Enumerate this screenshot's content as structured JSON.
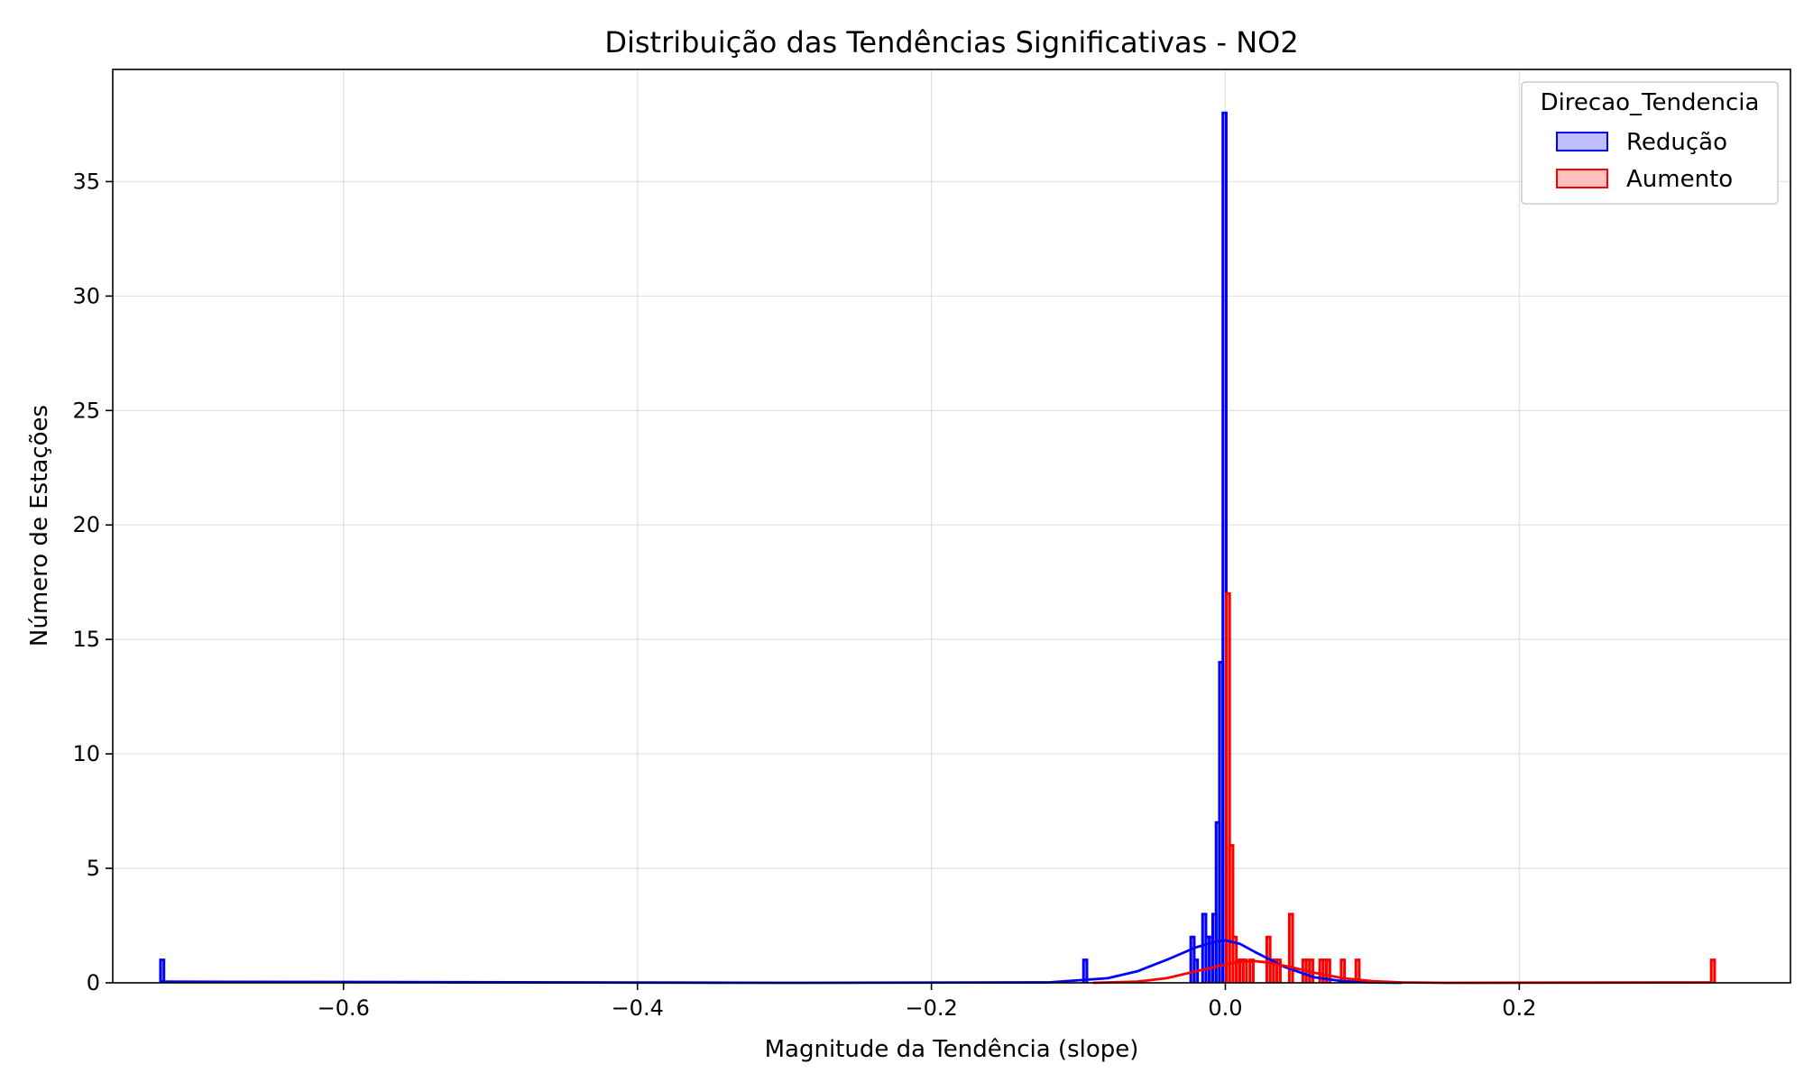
{
  "chart_data": {
    "type": "histogram",
    "title": "Distribuição das Tendências Significativas - NO2",
    "xlabel": "Magnitude da Tendência (slope)",
    "ylabel": "Número de Estações",
    "xlim": [
      -0.757,
      0.3845
    ],
    "ylim": [
      0,
      39.9
    ],
    "x_ticks": [
      -0.6,
      -0.4,
      -0.2,
      0.0,
      0.2
    ],
    "x_tick_labels": [
      "−0.6",
      "−0.4",
      "−0.2",
      "0.0",
      "0.2"
    ],
    "y_ticks": [
      0,
      5,
      10,
      15,
      20,
      25,
      30,
      35
    ],
    "y_tick_labels": [
      "0",
      "5",
      "10",
      "15",
      "20",
      "25",
      "30",
      "35"
    ],
    "grid": true,
    "legend": {
      "title": "Direcao_Tendencia",
      "placement": "top-right",
      "entries": [
        "Redução",
        "Aumento"
      ]
    },
    "series": [
      {
        "name": "Redução",
        "color": "#0000ff",
        "bins": [
          {
            "x0": -0.7245,
            "x1": -0.7222,
            "count": 1
          },
          {
            "x0": -0.0965,
            "x1": -0.0942,
            "count": 1
          },
          {
            "x0": -0.0235,
            "x1": -0.0212,
            "count": 2
          },
          {
            "x0": -0.0212,
            "x1": -0.0189,
            "count": 1
          },
          {
            "x0": -0.0155,
            "x1": -0.0132,
            "count": 3
          },
          {
            "x0": -0.0132,
            "x1": -0.0109,
            "count": 2
          },
          {
            "x0": -0.0109,
            "x1": -0.0086,
            "count": 2
          },
          {
            "x0": -0.0086,
            "x1": -0.0063,
            "count": 3
          },
          {
            "x0": -0.0063,
            "x1": -0.004,
            "count": 7
          },
          {
            "x0": -0.004,
            "x1": -0.0017,
            "count": 14
          },
          {
            "x0": -0.0017,
            "x1": 0.0006,
            "count": 38
          }
        ],
        "kde": [
          {
            "x": -0.724,
            "y": 0.05
          },
          {
            "x": -0.3,
            "y": 0.0
          },
          {
            "x": -0.12,
            "y": 0.02
          },
          {
            "x": -0.08,
            "y": 0.2
          },
          {
            "x": -0.06,
            "y": 0.5
          },
          {
            "x": -0.04,
            "y": 1.0
          },
          {
            "x": -0.02,
            "y": 1.55
          },
          {
            "x": -0.005,
            "y": 1.82
          },
          {
            "x": 0.0,
            "y": 1.85
          },
          {
            "x": 0.01,
            "y": 1.7
          },
          {
            "x": 0.02,
            "y": 1.35
          },
          {
            "x": 0.04,
            "y": 0.7
          },
          {
            "x": 0.06,
            "y": 0.25
          },
          {
            "x": 0.08,
            "y": 0.07
          },
          {
            "x": 0.1,
            "y": 0.015
          },
          {
            "x": 0.12,
            "y": 0.0
          }
        ]
      },
      {
        "name": "Aumento",
        "color": "#ff0000",
        "bins": [
          {
            "x0": 0.0006,
            "x1": 0.0029,
            "count": 17
          },
          {
            "x0": 0.0029,
            "x1": 0.0052,
            "count": 6
          },
          {
            "x0": 0.0052,
            "x1": 0.0075,
            "count": 2
          },
          {
            "x0": 0.0075,
            "x1": 0.0098,
            "count": 1
          },
          {
            "x0": 0.0098,
            "x1": 0.0121,
            "count": 1
          },
          {
            "x0": 0.0121,
            "x1": 0.0144,
            "count": 1
          },
          {
            "x0": 0.0167,
            "x1": 0.019,
            "count": 1
          },
          {
            "x0": 0.0282,
            "x1": 0.0305,
            "count": 2
          },
          {
            "x0": 0.0305,
            "x1": 0.0328,
            "count": 1
          },
          {
            "x0": 0.0328,
            "x1": 0.0351,
            "count": 1
          },
          {
            "x0": 0.0351,
            "x1": 0.0374,
            "count": 1
          },
          {
            "x0": 0.0435,
            "x1": 0.0458,
            "count": 3
          },
          {
            "x0": 0.0527,
            "x1": 0.055,
            "count": 1
          },
          {
            "x0": 0.055,
            "x1": 0.0573,
            "count": 1
          },
          {
            "x0": 0.0573,
            "x1": 0.0596,
            "count": 1
          },
          {
            "x0": 0.0642,
            "x1": 0.0665,
            "count": 1
          },
          {
            "x0": 0.0665,
            "x1": 0.0688,
            "count": 1
          },
          {
            "x0": 0.0688,
            "x1": 0.0711,
            "count": 1
          },
          {
            "x0": 0.0788,
            "x1": 0.0811,
            "count": 1
          },
          {
            "x0": 0.0888,
            "x1": 0.0911,
            "count": 1
          },
          {
            "x0": 0.3306,
            "x1": 0.3329,
            "count": 1
          }
        ],
        "kde": [
          {
            "x": -0.09,
            "y": 0.0
          },
          {
            "x": -0.06,
            "y": 0.05
          },
          {
            "x": -0.04,
            "y": 0.2
          },
          {
            "x": -0.02,
            "y": 0.5
          },
          {
            "x": 0.0,
            "y": 0.8
          },
          {
            "x": 0.01,
            "y": 0.92
          },
          {
            "x": 0.02,
            "y": 0.95
          },
          {
            "x": 0.03,
            "y": 0.88
          },
          {
            "x": 0.045,
            "y": 0.68
          },
          {
            "x": 0.06,
            "y": 0.45
          },
          {
            "x": 0.08,
            "y": 0.2
          },
          {
            "x": 0.1,
            "y": 0.07
          },
          {
            "x": 0.12,
            "y": 0.02
          },
          {
            "x": 0.15,
            "y": 0.0
          },
          {
            "x": 0.33,
            "y": 0.02
          }
        ]
      }
    ]
  }
}
